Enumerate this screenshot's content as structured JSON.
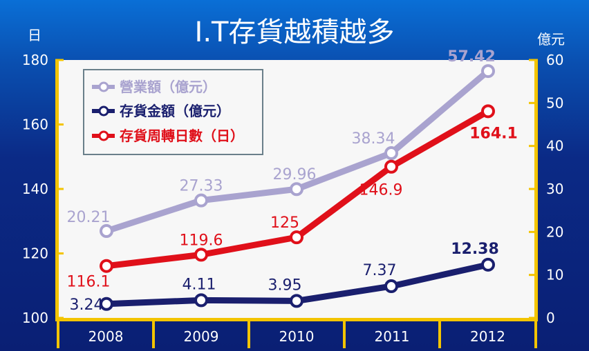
{
  "chart_data": {
    "type": "line",
    "title": "I.T存貨越積越多",
    "left_axis_unit": "日",
    "right_axis_unit": "億元",
    "categories": [
      "2008",
      "2009",
      "2010",
      "2011",
      "2012"
    ],
    "left_ylim": [
      100,
      180
    ],
    "left_ticks": [
      "100",
      "120",
      "140",
      "160",
      "180"
    ],
    "right_ylim": [
      0,
      60
    ],
    "right_ticks": [
      "0",
      "10",
      "20",
      "30",
      "40",
      "50",
      "60"
    ],
    "legend_position": "top-left",
    "series": [
      {
        "name": "營業額（億元）",
        "axis": "right",
        "color": "#a9a3cf",
        "values": [
          20.21,
          27.33,
          29.96,
          38.34,
          57.42
        ],
        "labels": [
          "20.21",
          "27.33",
          "29.96",
          "38.34",
          "57.42"
        ]
      },
      {
        "name": "存貨金額（億元）",
        "axis": "right",
        "color": "#1a1f6e",
        "values": [
          3.24,
          4.11,
          3.95,
          7.37,
          12.38
        ],
        "labels": [
          "3.24",
          "4.11",
          "3.95",
          "7.37",
          "12.38"
        ]
      },
      {
        "name": "存貨周轉日數（日）",
        "axis": "left",
        "color": "#e0101a",
        "values": [
          116.1,
          119.6,
          125,
          146.9,
          164.1
        ],
        "labels": [
          "116.1",
          "119.6",
          "125",
          "146.9",
          "164.1"
        ]
      }
    ]
  }
}
